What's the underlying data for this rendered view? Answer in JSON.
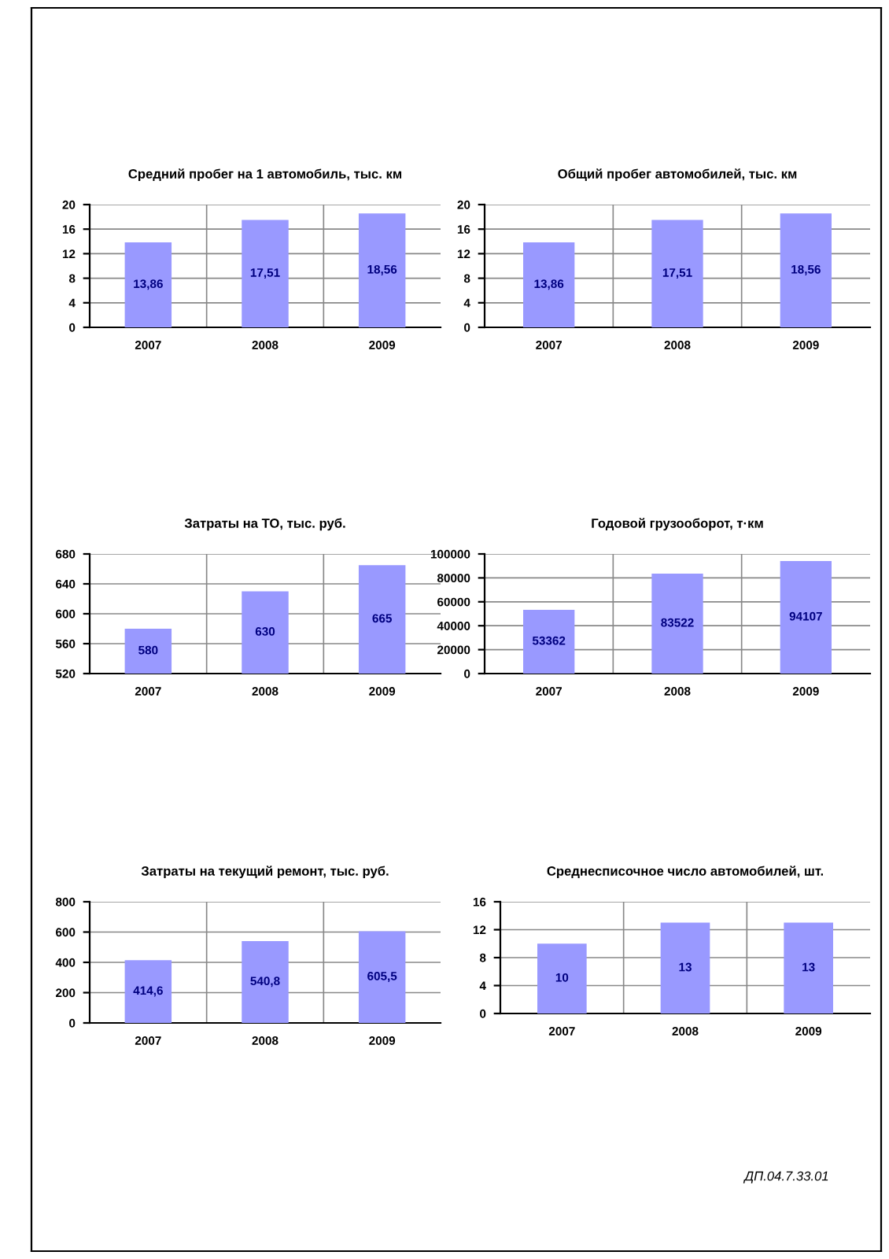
{
  "chart_data": [
    {
      "type": "bar",
      "title": "Средний пробег на 1 автомобиль, тыс. км",
      "categories": [
        "2007",
        "2008",
        "2009"
      ],
      "values": [
        13.86,
        17.51,
        18.56
      ],
      "value_labels": [
        "13,86",
        "17,51",
        "18,56"
      ],
      "color": "#9999ff",
      "ylim": [
        0,
        20
      ],
      "yticks": [
        0,
        4,
        8,
        12,
        16,
        20
      ],
      "grid": true
    },
    {
      "type": "bar",
      "title": "Общий пробег автомобилей, тыс. км",
      "categories": [
        "2007",
        "2008",
        "2009"
      ],
      "values": [
        13.86,
        17.51,
        18.56
      ],
      "value_labels": [
        "13,86",
        "17,51",
        "18,56"
      ],
      "color": "#9999ff",
      "ylim": [
        0,
        20
      ],
      "yticks": [
        0,
        4,
        8,
        12,
        16,
        20
      ],
      "grid": true
    },
    {
      "type": "bar",
      "title": "Затраты на ТО, тыс. руб.",
      "categories": [
        "2007",
        "2008",
        "2009"
      ],
      "values": [
        580,
        630,
        665
      ],
      "value_labels": [
        "580",
        "630",
        "665"
      ],
      "color": "#9999ff",
      "ylim": [
        520,
        680
      ],
      "yticks": [
        520,
        560,
        600,
        640,
        680
      ],
      "grid": true
    },
    {
      "type": "bar",
      "title": "Годовой грузооборот, т·км",
      "categories": [
        "2007",
        "2008",
        "2009"
      ],
      "values": [
        53362,
        83522,
        94107
      ],
      "value_labels": [
        "53362",
        "83522",
        "94107"
      ],
      "color": "#9999ff",
      "ylim": [
        0,
        100000
      ],
      "yticks": [
        0,
        20000,
        40000,
        60000,
        80000,
        100000
      ],
      "grid": true
    },
    {
      "type": "bar",
      "title": "Затраты на текущий ремонт, тыс. руб.",
      "categories": [
        "2007",
        "2008",
        "2009"
      ],
      "values": [
        414.6,
        540.8,
        605.5
      ],
      "value_labels": [
        "414,6",
        "540,8",
        "605,5"
      ],
      "color": "#9999ff",
      "ylim": [
        0,
        800
      ],
      "yticks": [
        0,
        200,
        400,
        600,
        800
      ],
      "grid": true
    },
    {
      "type": "bar",
      "title": "Среднесписочное число автомобилей, шт.",
      "categories": [
        "2007",
        "2008",
        "2009"
      ],
      "values": [
        10,
        13,
        13
      ],
      "value_labels": [
        "10",
        "13",
        "13"
      ],
      "color": "#9999ff",
      "ylim": [
        0,
        16
      ],
      "yticks": [
        0,
        4,
        8,
        12,
        16
      ],
      "grid": true
    },
    {
      "type": "other",
      "annotations": [
        "ДП.04.7.33.01"
      ]
    }
  ]
}
